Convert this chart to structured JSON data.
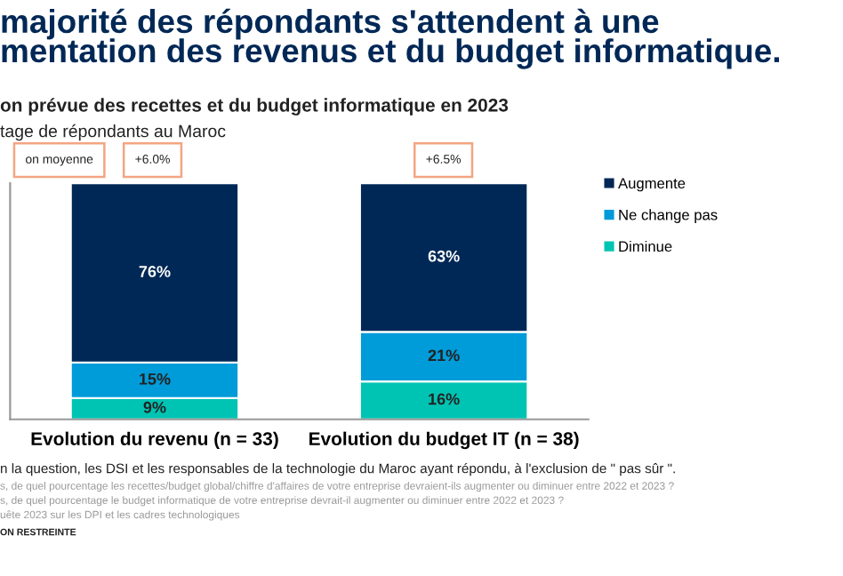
{
  "chart_data": {
    "type": "bar",
    "stacked": true,
    "legend": "top right",
    "grid": false,
    "title": "majorité des répondants s'attendent à une\nmentation des revenus et du budget informatique.",
    "subtitle": "on prévue des recettes et du budget informatique en 2023",
    "categories": [
      "Evolution du revenu (n = 33)",
      "Evolution du budget IT (n = 38)"
    ],
    "series": [
      {
        "name": "Diminue",
        "color": "#00c4b3",
        "values": [
          9,
          16
        ],
        "value_labels": [
          "9%",
          "16%"
        ]
      },
      {
        "name": "Ne change pas",
        "color": "#009bd9",
        "values": [
          15,
          21
        ],
        "value_labels": [
          "15%",
          "21%"
        ]
      },
      {
        "name": "Augmente",
        "color": "#002856",
        "values": [
          76,
          63
        ],
        "value_labels": [
          "76%",
          "63%"
        ]
      }
    ],
    "annotations": [
      "tage de répondants au Maroc",
      "on moyenne",
      "+6.0%",
      "+6.5%",
      "n la question, les DSI et les responsables de la technologie du Maroc ayant répondu, à l'exclusion de \" pas sûr \".",
      "s, de quel pourcentage les recettes/budget global/chiffre d'affaires de votre entreprise devraient-ils augmenter ou diminuer entre 2022 et 2023 ?",
      "s, de quel pourcentage le budget informatique de votre entreprise devrait-il augmenter ou diminuer entre 2022 et 2023 ?",
      "uête 2023 sur les DPI et les cadres technologiques",
      "ON RESTREINTE"
    ]
  }
}
